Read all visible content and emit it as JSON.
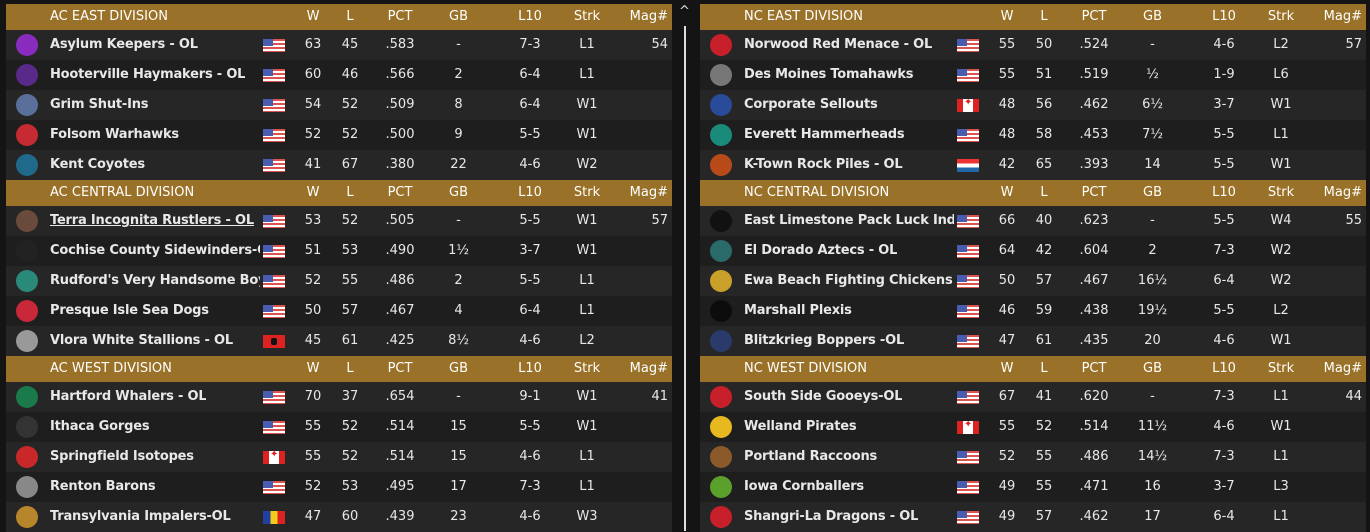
{
  "colors": {
    "header": "#9a7128",
    "row_a": "#262626",
    "row_b": "#1e1e1e"
  },
  "columns": {
    "w": "W",
    "l": "L",
    "pct": "PCT",
    "gb": "GB",
    "l10": "L10",
    "strk": "Strk",
    "mag": "Mag#"
  },
  "scrollbar": {
    "up_icon": "^"
  },
  "left": [
    {
      "title": "AC EAST DIVISION",
      "teams": [
        {
          "name": "Asylum Keepers - OL",
          "flag": "us",
          "w": "63",
          "l": "45",
          "pct": ".583",
          "gb": "-",
          "l10": "7-3",
          "strk": "L1",
          "mag": "54",
          "logo": "#8a2bbf"
        },
        {
          "name": "Hooterville Haymakers - OL",
          "flag": "us",
          "w": "60",
          "l": "46",
          "pct": ".566",
          "gb": "2",
          "l10": "6-4",
          "strk": "L1",
          "mag": "",
          "logo": "#5a2a8a"
        },
        {
          "name": "Grim Shut-Ins",
          "flag": "us",
          "w": "54",
          "l": "52",
          "pct": ".509",
          "gb": "8",
          "l10": "6-4",
          "strk": "W1",
          "mag": "",
          "logo": "#5a6f9a"
        },
        {
          "name": "Folsom Warhawks",
          "flag": "us",
          "w": "52",
          "l": "52",
          "pct": ".500",
          "gb": "9",
          "l10": "5-5",
          "strk": "W1",
          "mag": "",
          "logo": "#c62a32"
        },
        {
          "name": "Kent Coyotes",
          "flag": "us",
          "w": "41",
          "l": "67",
          "pct": ".380",
          "gb": "22",
          "l10": "4-6",
          "strk": "W2",
          "mag": "",
          "logo": "#1f6a8a"
        }
      ]
    },
    {
      "title": "AC CENTRAL DIVISION",
      "teams": [
        {
          "name": "Terra Incognita Rustlers - OL",
          "flag": "us",
          "w": "53",
          "l": "52",
          "pct": ".505",
          "gb": "-",
          "l10": "5-5",
          "strk": "W1",
          "mag": "57",
          "logo": "#6a4a3a",
          "selected": true
        },
        {
          "name": "Cochise County Sidewinders-OL",
          "flag": "us",
          "w": "51",
          "l": "53",
          "pct": ".490",
          "gb": "1½",
          "l10": "3-7",
          "strk": "W1",
          "mag": "",
          "logo": "#222"
        },
        {
          "name": "Rudford's Very Handsome Boys",
          "flag": "us",
          "w": "52",
          "l": "55",
          "pct": ".486",
          "gb": "2",
          "l10": "5-5",
          "strk": "L1",
          "mag": "",
          "logo": "#2a8a7a"
        },
        {
          "name": "Presque Isle Sea Dogs",
          "flag": "us",
          "w": "50",
          "l": "57",
          "pct": ".467",
          "gb": "4",
          "l10": "6-4",
          "strk": "L1",
          "mag": "",
          "logo": "#c8283a"
        },
        {
          "name": "Vlora White Stallions - OL",
          "flag": "al",
          "w": "45",
          "l": "61",
          "pct": ".425",
          "gb": "8½",
          "l10": "4-6",
          "strk": "L2",
          "mag": "",
          "logo": "#999"
        }
      ]
    },
    {
      "title": "AC WEST DIVISION",
      "teams": [
        {
          "name": "Hartford Whalers - OL",
          "flag": "us",
          "w": "70",
          "l": "37",
          "pct": ".654",
          "gb": "-",
          "l10": "9-1",
          "strk": "W1",
          "mag": "41",
          "logo": "#1a7a4a"
        },
        {
          "name": "Ithaca Gorges",
          "flag": "us",
          "w": "55",
          "l": "52",
          "pct": ".514",
          "gb": "15",
          "l10": "5-5",
          "strk": "W1",
          "mag": "",
          "logo": "#333"
        },
        {
          "name": "Springfield Isotopes",
          "flag": "ca",
          "w": "55",
          "l": "52",
          "pct": ".514",
          "gb": "15",
          "l10": "4-6",
          "strk": "L1",
          "mag": "",
          "logo": "#c8282a"
        },
        {
          "name": "Renton Barons",
          "flag": "us",
          "w": "52",
          "l": "53",
          "pct": ".495",
          "gb": "17",
          "l10": "7-3",
          "strk": "L1",
          "mag": "",
          "logo": "#888"
        },
        {
          "name": "Transylvania Impalers-OL",
          "flag": "ro",
          "w": "47",
          "l": "60",
          "pct": ".439",
          "gb": "23",
          "l10": "4-6",
          "strk": "W3",
          "mag": "",
          "logo": "#b8862a"
        }
      ]
    }
  ],
  "right": [
    {
      "title": "NC EAST DIVISION",
      "teams": [
        {
          "name": "Norwood Red Menace - OL",
          "flag": "us",
          "w": "55",
          "l": "50",
          "pct": ".524",
          "gb": "-",
          "l10": "4-6",
          "strk": "L2",
          "mag": "57",
          "logo": "#c8202a"
        },
        {
          "name": "Des Moines Tomahawks",
          "flag": "us",
          "w": "55",
          "l": "51",
          "pct": ".519",
          "gb": "½",
          "l10": "1-9",
          "strk": "L6",
          "mag": "",
          "logo": "#777"
        },
        {
          "name": "Corporate Sellouts",
          "flag": "ca",
          "w": "48",
          "l": "56",
          "pct": ".462",
          "gb": "6½",
          "l10": "3-7",
          "strk": "W1",
          "mag": "",
          "logo": "#2a4a9a"
        },
        {
          "name": "Everett Hammerheads",
          "flag": "us",
          "w": "48",
          "l": "58",
          "pct": ".453",
          "gb": "7½",
          "l10": "5-5",
          "strk": "L1",
          "mag": "",
          "logo": "#1a8a7a"
        },
        {
          "name": "K-Town Rock Piles - OL",
          "flag": "hr",
          "w": "42",
          "l": "65",
          "pct": ".393",
          "gb": "14",
          "l10": "5-5",
          "strk": "W1",
          "mag": "",
          "logo": "#b84a1a"
        }
      ]
    },
    {
      "title": "NC CENTRAL DIVISION",
      "teams": [
        {
          "name": "East Limestone Pack Luck Indians",
          "flag": "us",
          "w": "66",
          "l": "40",
          "pct": ".623",
          "gb": "-",
          "l10": "5-5",
          "strk": "W4",
          "mag": "55",
          "logo": "#111"
        },
        {
          "name": "El Dorado Aztecs - OL",
          "flag": "us",
          "w": "64",
          "l": "42",
          "pct": ".604",
          "gb": "2",
          "l10": "7-3",
          "strk": "W2",
          "mag": "",
          "logo": "#2a6a6a"
        },
        {
          "name": "Ewa Beach Fighting Chickens -",
          "flag": "us",
          "w": "50",
          "l": "57",
          "pct": ".467",
          "gb": "16½",
          "l10": "6-4",
          "strk": "W2",
          "mag": "",
          "logo": "#c8a02a"
        },
        {
          "name": "Marshall Plexis",
          "flag": "us",
          "w": "46",
          "l": "59",
          "pct": ".438",
          "gb": "19½",
          "l10": "5-5",
          "strk": "L2",
          "mag": "",
          "logo": "#0c0c0c"
        },
        {
          "name": "Blitzkrieg Boppers -OL",
          "flag": "us",
          "w": "47",
          "l": "61",
          "pct": ".435",
          "gb": "20",
          "l10": "4-6",
          "strk": "W1",
          "mag": "",
          "logo": "#2a3a6a"
        }
      ]
    },
    {
      "title": "NC WEST DIVISION",
      "teams": [
        {
          "name": "South Side Gooeys-OL",
          "flag": "us",
          "w": "67",
          "l": "41",
          "pct": ".620",
          "gb": "-",
          "l10": "7-3",
          "strk": "L1",
          "mag": "44",
          "logo": "#c8202a"
        },
        {
          "name": "Welland Pirates",
          "flag": "ca",
          "w": "55",
          "l": "52",
          "pct": ".514",
          "gb": "11½",
          "l10": "4-6",
          "strk": "W1",
          "mag": "",
          "logo": "#e8b820"
        },
        {
          "name": "Portland Raccoons",
          "flag": "us",
          "w": "52",
          "l": "55",
          "pct": ".486",
          "gb": "14½",
          "l10": "7-3",
          "strk": "L1",
          "mag": "",
          "logo": "#8a5a2a"
        },
        {
          "name": "Iowa Cornballers",
          "flag": "us",
          "w": "49",
          "l": "55",
          "pct": ".471",
          "gb": "16",
          "l10": "3-7",
          "strk": "L3",
          "mag": "",
          "logo": "#5aa02a"
        },
        {
          "name": "Shangri-La Dragons - OL",
          "flag": "us",
          "w": "49",
          "l": "57",
          "pct": ".462",
          "gb": "17",
          "l10": "6-4",
          "strk": "L1",
          "mag": "",
          "logo": "#c8202a"
        }
      ]
    }
  ]
}
